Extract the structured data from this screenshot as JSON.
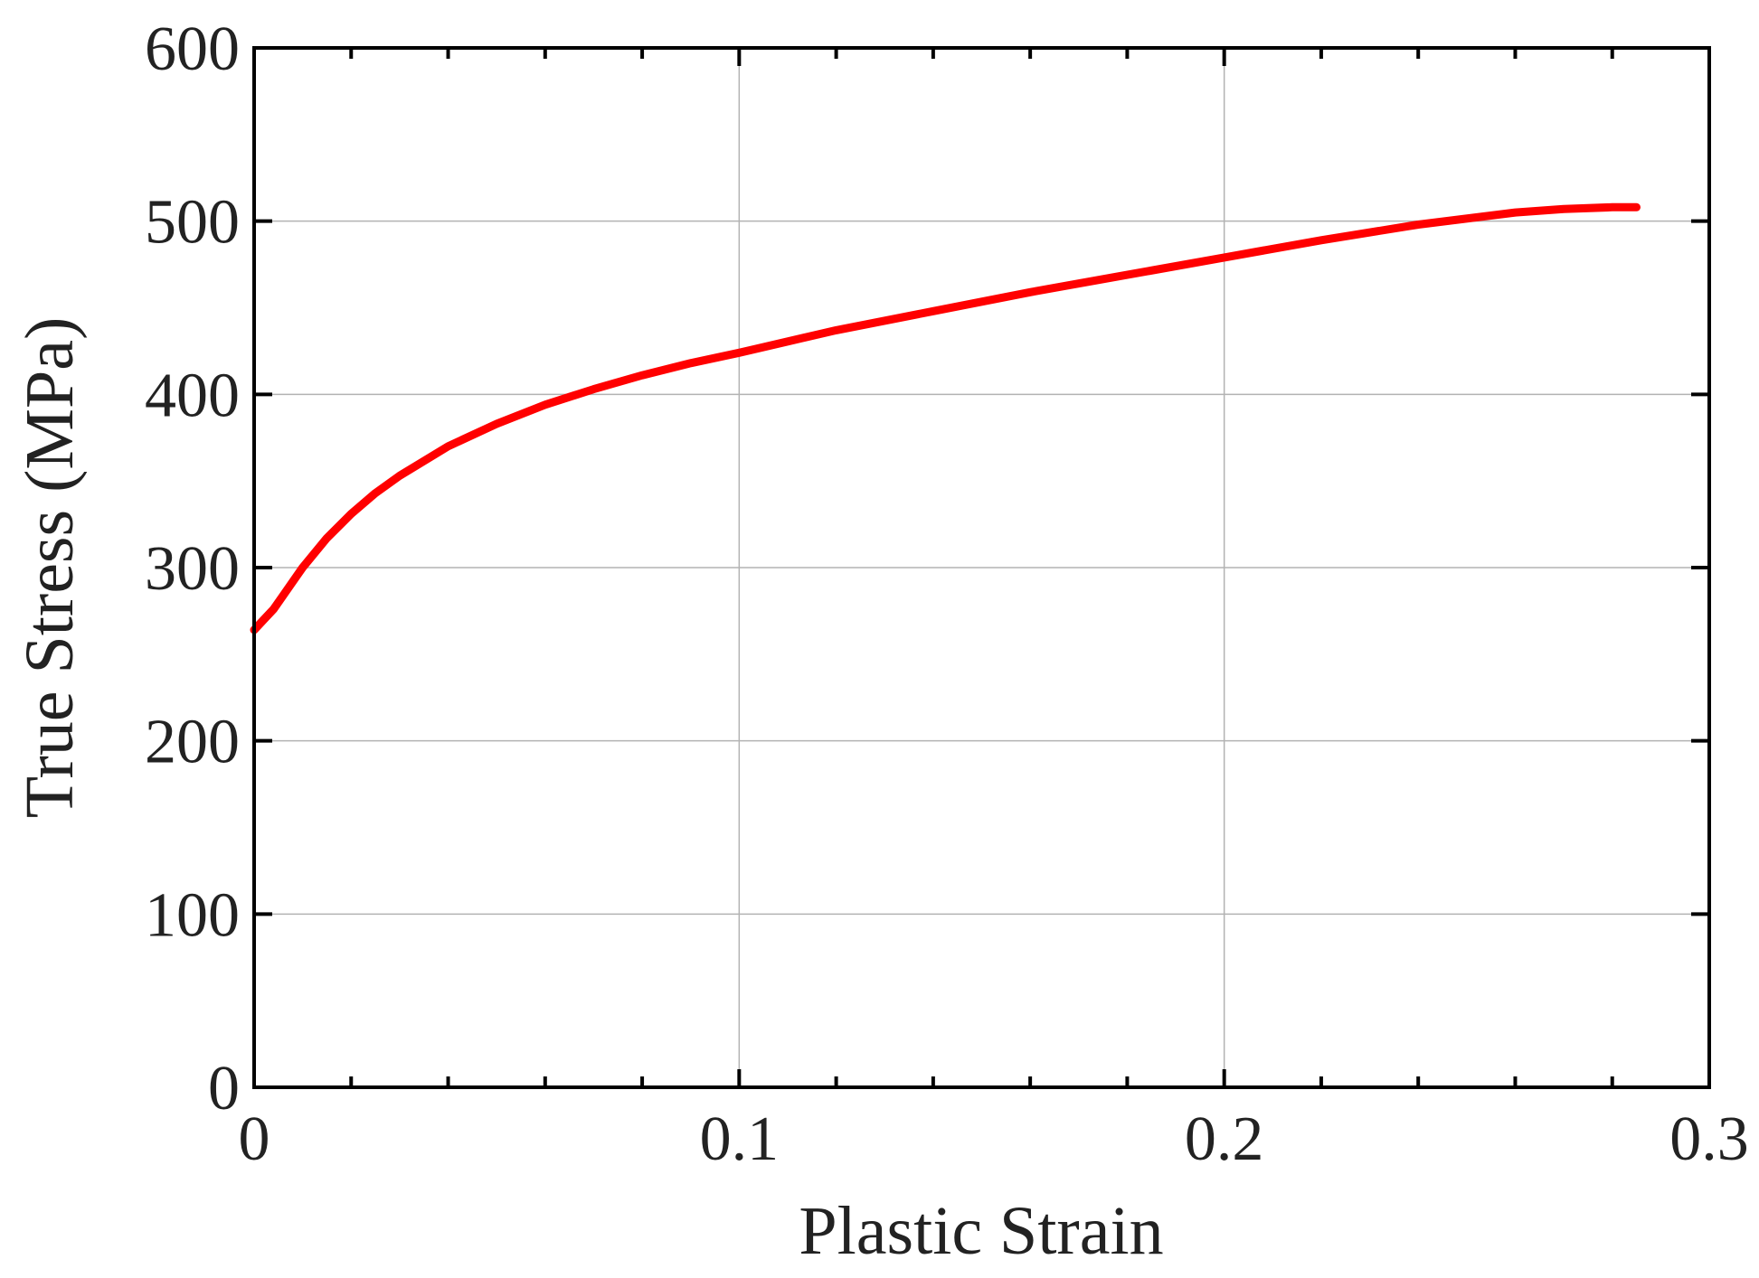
{
  "chart_data": {
    "type": "line",
    "xlabel": "Plastic Strain",
    "ylabel": "True Stress (MPa)",
    "xlim": [
      0,
      0.3
    ],
    "ylim": [
      0,
      600
    ],
    "x_ticks": [
      0,
      0.1,
      0.2,
      0.3
    ],
    "x_tick_labels": [
      "0",
      "0.1",
      "0.2",
      "0.3"
    ],
    "x_minor_step": 0.02,
    "y_ticks": [
      0,
      100,
      200,
      300,
      400,
      500,
      600
    ],
    "y_tick_labels": [
      "0",
      "100",
      "200",
      "300",
      "400",
      "500",
      "600"
    ],
    "grid": true,
    "series": [
      {
        "color": "#ff0000",
        "x": [
          0,
          0.002,
          0.004,
          0.006,
          0.008,
          0.01,
          0.015,
          0.02,
          0.025,
          0.03,
          0.04,
          0.05,
          0.06,
          0.07,
          0.08,
          0.09,
          0.1,
          0.12,
          0.14,
          0.16,
          0.18,
          0.2,
          0.22,
          0.24,
          0.26,
          0.27,
          0.28,
          0.285
        ],
        "y": [
          264,
          270,
          276,
          284,
          292,
          300,
          317,
          331,
          343,
          353,
          370,
          383,
          394,
          403,
          411,
          418,
          424,
          437,
          448,
          459,
          469,
          479,
          489,
          498,
          505,
          507,
          508,
          508
        ]
      }
    ]
  }
}
